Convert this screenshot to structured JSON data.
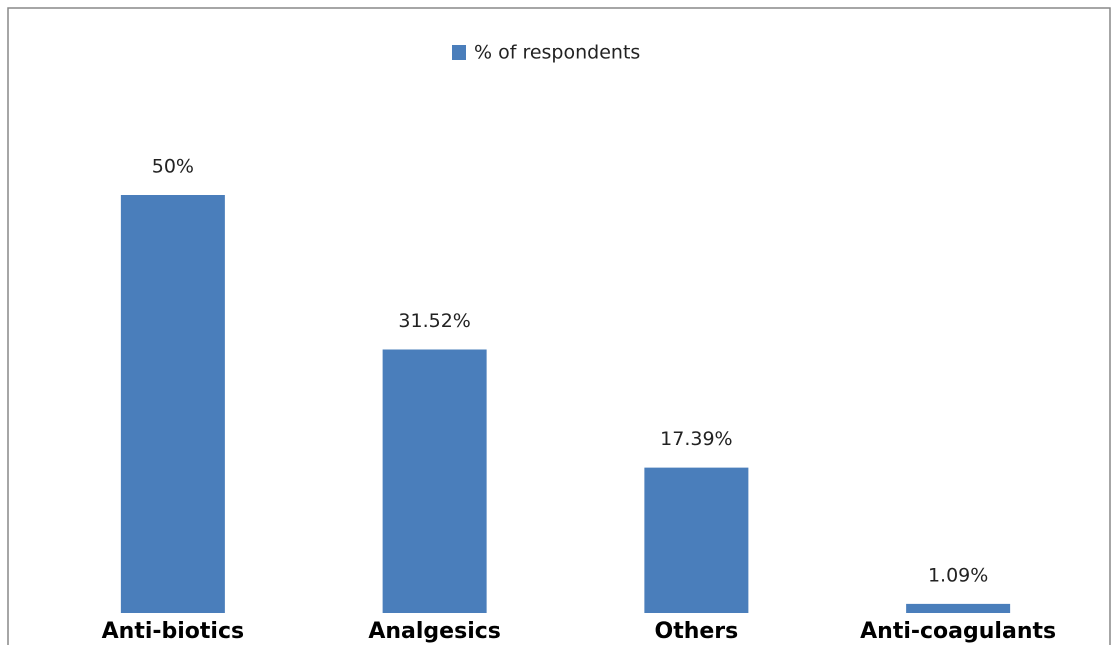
{
  "chart_data": {
    "type": "bar",
    "categories": [
      "Anti-biotics",
      "Analgesics",
      "Others",
      "Anti-coagulants"
    ],
    "series": [
      {
        "name": "% of respondents",
        "color": "#4a7ebb",
        "values": [
          50,
          31.52,
          17.39,
          1.09
        ],
        "value_labels": [
          "50%",
          "31.52%",
          "17.39%",
          "1.09%"
        ]
      }
    ],
    "legend": "top"
  }
}
